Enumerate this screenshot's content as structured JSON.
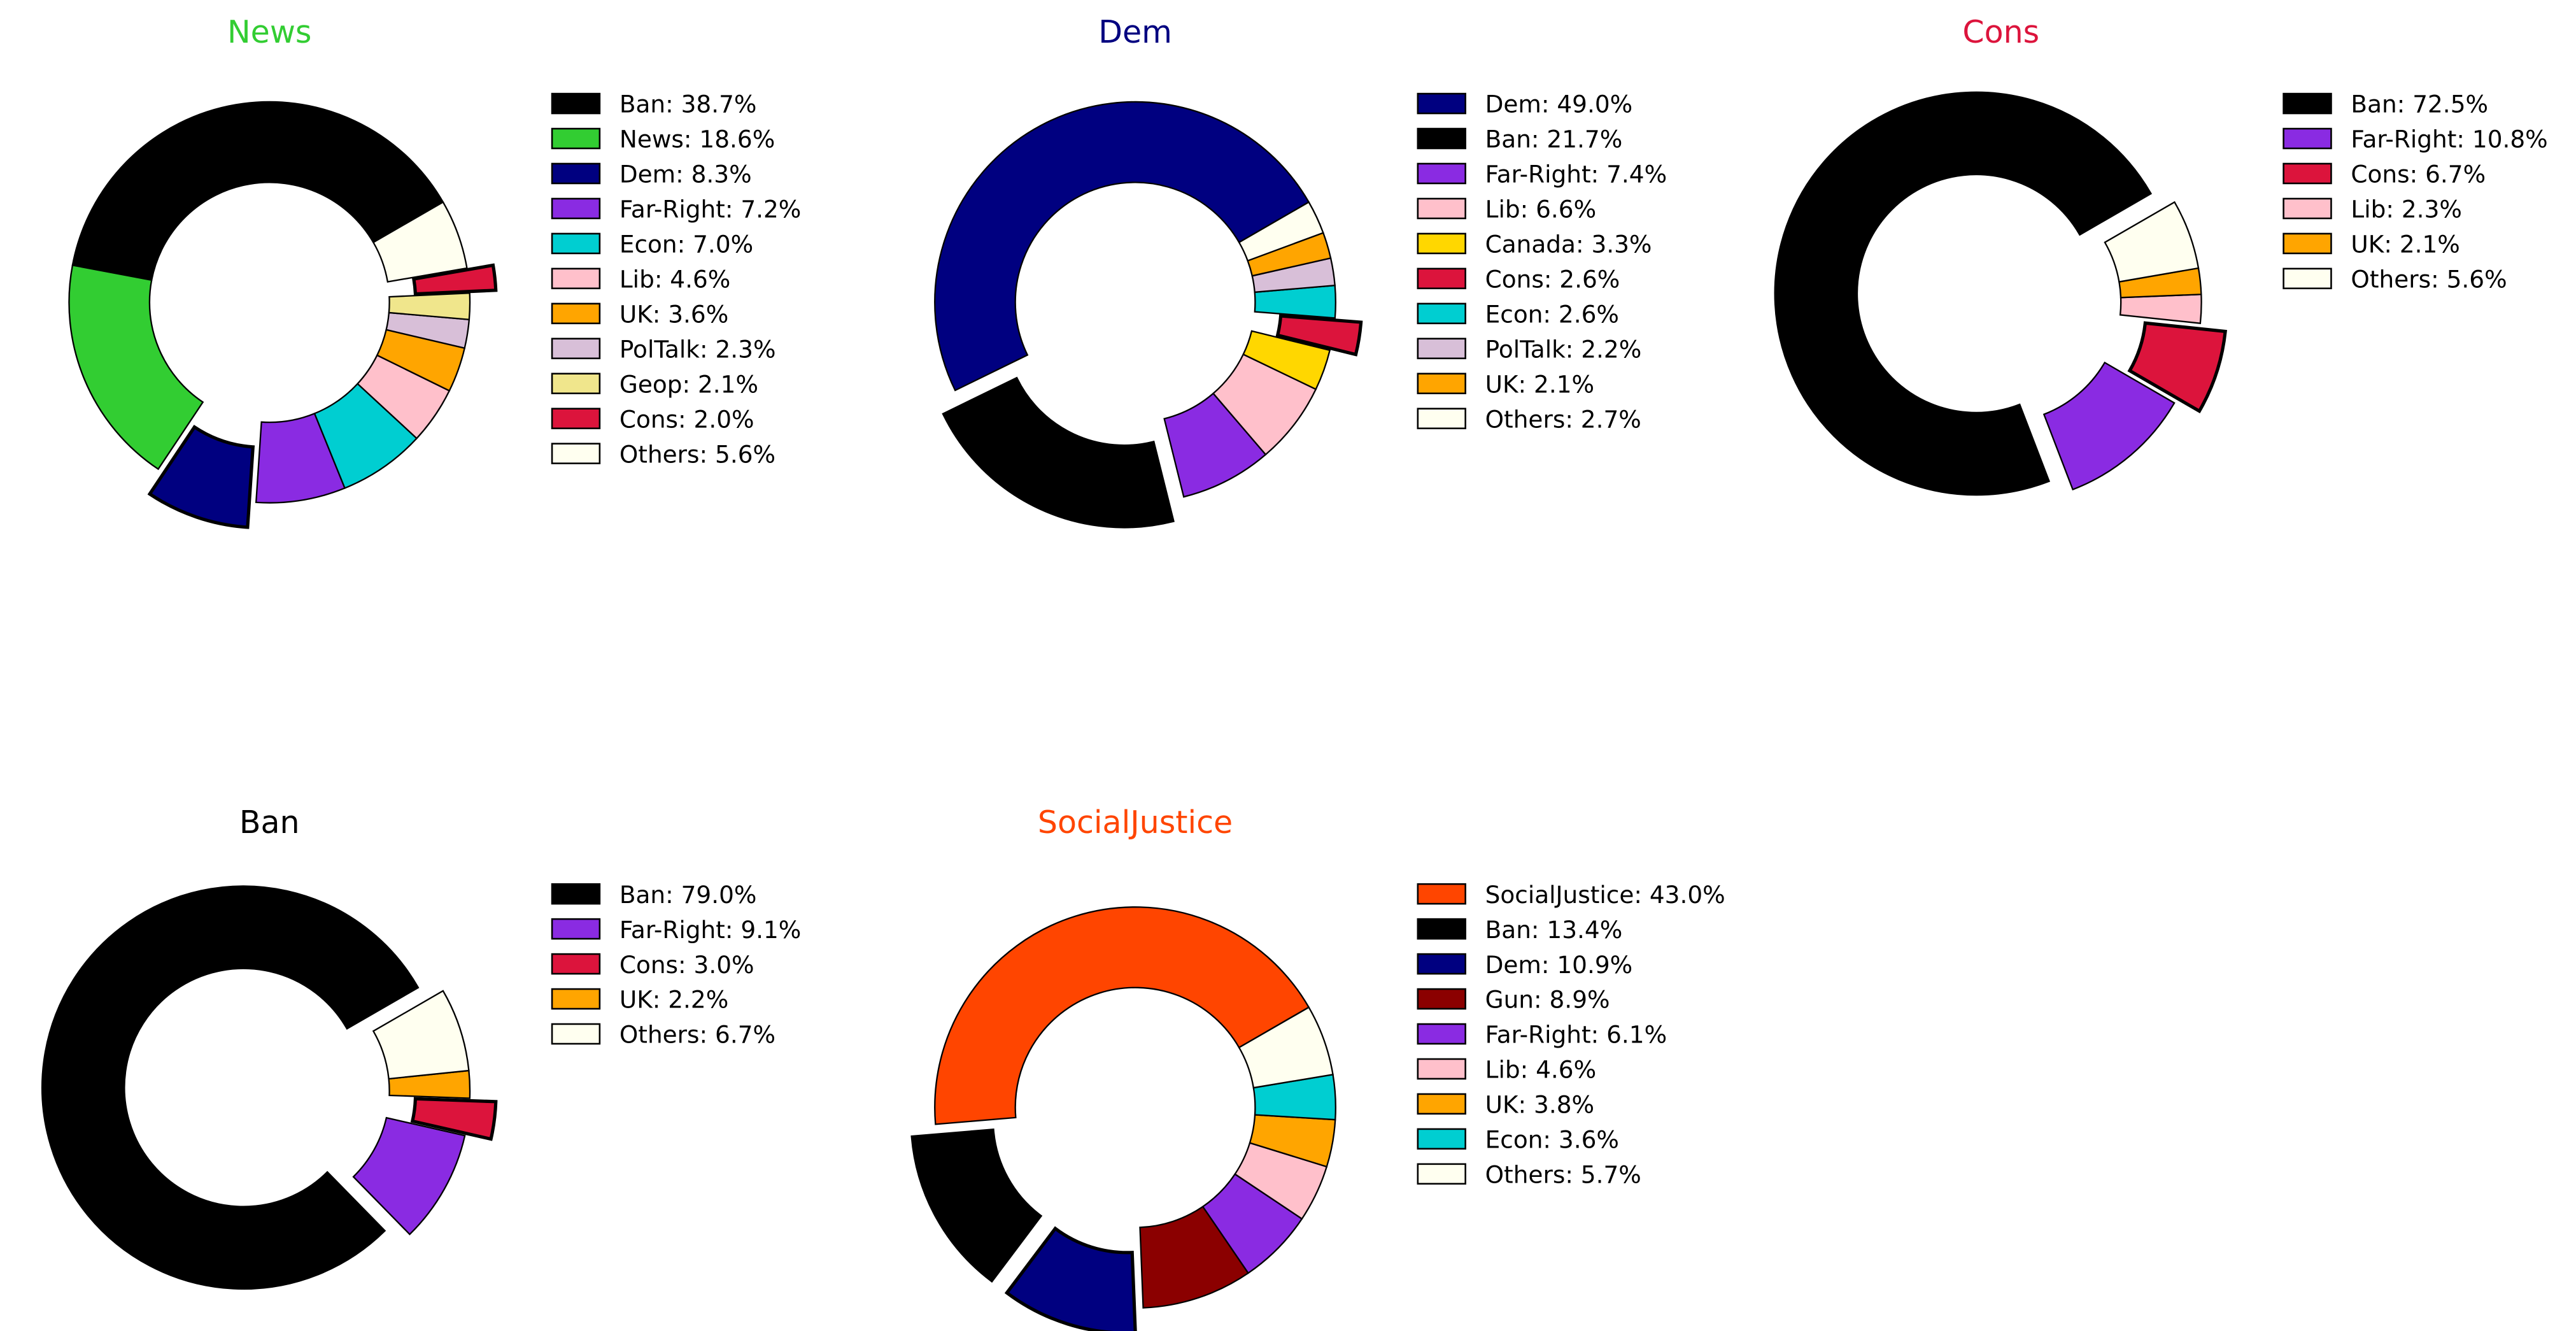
{
  "chart_data": [
    {
      "type": "pie",
      "title": "News",
      "title_color": "#32cd32",
      "legend_position": "right",
      "slices": [
        {
          "label": "Ban",
          "value": 38.7,
          "color": "#000000",
          "legend": "Ban: 38.7%"
        },
        {
          "label": "News",
          "value": 18.6,
          "color": "#32cd32",
          "legend": "News: 18.6%"
        },
        {
          "label": "Dem",
          "value": 8.3,
          "color": "#000080",
          "legend": "Dem: 8.3%",
          "explode": true
        },
        {
          "label": "Far-Right",
          "value": 7.2,
          "color": "#8a2be2",
          "legend": "Far-Right: 7.2%"
        },
        {
          "label": "Econ",
          "value": 7.0,
          "color": "#00ced1",
          "legend": "Econ: 7.0%"
        },
        {
          "label": "Lib",
          "value": 4.6,
          "color": "#ffc0cb",
          "legend": "Lib: 4.6%"
        },
        {
          "label": "UK",
          "value": 3.6,
          "color": "#ffa500",
          "legend": "UK: 3.6%"
        },
        {
          "label": "PolTalk",
          "value": 2.3,
          "color": "#d8bfd8",
          "legend": "PolTalk: 2.3%"
        },
        {
          "label": "Geop",
          "value": 2.1,
          "color": "#f0e68c",
          "legend": "Geop: 2.1%"
        },
        {
          "label": "Cons",
          "value": 2.0,
          "color": "#dc143c",
          "legend": "Cons: 2.0%",
          "explode": true
        },
        {
          "label": "Others",
          "value": 5.6,
          "color": "#fffff0",
          "legend": "Others: 5.6%"
        }
      ]
    },
    {
      "type": "pie",
      "title": "Dem",
      "title_color": "#000080",
      "legend_position": "right",
      "slices": [
        {
          "label": "Dem",
          "value": 49.0,
          "color": "#000080",
          "legend": "Dem: 49.0%"
        },
        {
          "label": "Ban",
          "value": 21.7,
          "color": "#000000",
          "legend": "Ban: 21.7%",
          "explode": true
        },
        {
          "label": "Far-Right",
          "value": 7.4,
          "color": "#8a2be2",
          "legend": "Far-Right: 7.4%"
        },
        {
          "label": "Lib",
          "value": 6.6,
          "color": "#ffc0cb",
          "legend": "Lib: 6.6%"
        },
        {
          "label": "Canada",
          "value": 3.3,
          "color": "#ffd700",
          "legend": "Canada: 3.3%"
        },
        {
          "label": "Cons",
          "value": 2.6,
          "color": "#dc143c",
          "legend": "Cons: 2.6%",
          "explode": true
        },
        {
          "label": "Econ",
          "value": 2.6,
          "color": "#00ced1",
          "legend": "Econ: 2.6%"
        },
        {
          "label": "PolTalk",
          "value": 2.2,
          "color": "#d8bfd8",
          "legend": "PolTalk: 2.2%"
        },
        {
          "label": "UK",
          "value": 2.1,
          "color": "#ffa500",
          "legend": "UK: 2.1%"
        },
        {
          "label": "Others",
          "value": 2.7,
          "color": "#fffff0",
          "legend": "Others: 2.7%"
        }
      ]
    },
    {
      "type": "pie",
      "title": "Cons",
      "title_color": "#dc143c",
      "legend_position": "right",
      "slices": [
        {
          "label": "Ban",
          "value": 72.5,
          "color": "#000000",
          "legend": "Ban: 72.5%",
          "explode": true
        },
        {
          "label": "Far-Right",
          "value": 10.8,
          "color": "#8a2be2",
          "legend": "Far-Right: 10.8%"
        },
        {
          "label": "Cons",
          "value": 6.7,
          "color": "#dc143c",
          "legend": "Cons: 6.7%",
          "explode": true
        },
        {
          "label": "Lib",
          "value": 2.3,
          "color": "#ffc0cb",
          "legend": "Lib: 2.3%"
        },
        {
          "label": "UK",
          "value": 2.1,
          "color": "#ffa500",
          "legend": "UK: 2.1%"
        },
        {
          "label": "Others",
          "value": 5.6,
          "color": "#fffff0",
          "legend": "Others: 5.6%"
        }
      ]
    },
    {
      "type": "pie",
      "title": "Ban",
      "title_color": "#000000",
      "legend_position": "right",
      "slices": [
        {
          "label": "Ban",
          "value": 79.0,
          "color": "#000000",
          "legend": "Ban: 79.0%",
          "explode": true
        },
        {
          "label": "Far-Right",
          "value": 9.1,
          "color": "#8a2be2",
          "legend": "Far-Right: 9.1%"
        },
        {
          "label": "Cons",
          "value": 3.0,
          "color": "#dc143c",
          "legend": "Cons: 3.0%",
          "explode": true
        },
        {
          "label": "UK",
          "value": 2.2,
          "color": "#ffa500",
          "legend": "UK: 2.2%"
        },
        {
          "label": "Others",
          "value": 6.7,
          "color": "#fffff0",
          "legend": "Others: 6.7%"
        }
      ]
    },
    {
      "type": "pie",
      "title": "SocialJustice",
      "title_color": "#ff4500",
      "legend_position": "right",
      "slices": [
        {
          "label": "SocialJustice",
          "value": 43.0,
          "color": "#ff4500",
          "legend": "SocialJustice: 43.0%"
        },
        {
          "label": "Ban",
          "value": 13.4,
          "color": "#000000",
          "legend": "Ban: 13.4%",
          "explode": true
        },
        {
          "label": "Dem",
          "value": 10.9,
          "color": "#000080",
          "legend": "Dem: 10.9%",
          "explode": true
        },
        {
          "label": "Gun",
          "value": 8.9,
          "color": "#8b0000",
          "legend": "Gun: 8.9%"
        },
        {
          "label": "Far-Right",
          "value": 6.1,
          "color": "#8a2be2",
          "legend": "Far-Right: 6.1%"
        },
        {
          "label": "Lib",
          "value": 4.6,
          "color": "#ffc0cb",
          "legend": "Lib: 4.6%"
        },
        {
          "label": "UK",
          "value": 3.8,
          "color": "#ffa500",
          "legend": "UK: 3.8%"
        },
        {
          "label": "Econ",
          "value": 3.6,
          "color": "#00ced1",
          "legend": "Econ: 3.6%"
        },
        {
          "label": "Others",
          "value": 5.7,
          "color": "#fffff0",
          "legend": "Others: 5.7%"
        }
      ]
    }
  ]
}
